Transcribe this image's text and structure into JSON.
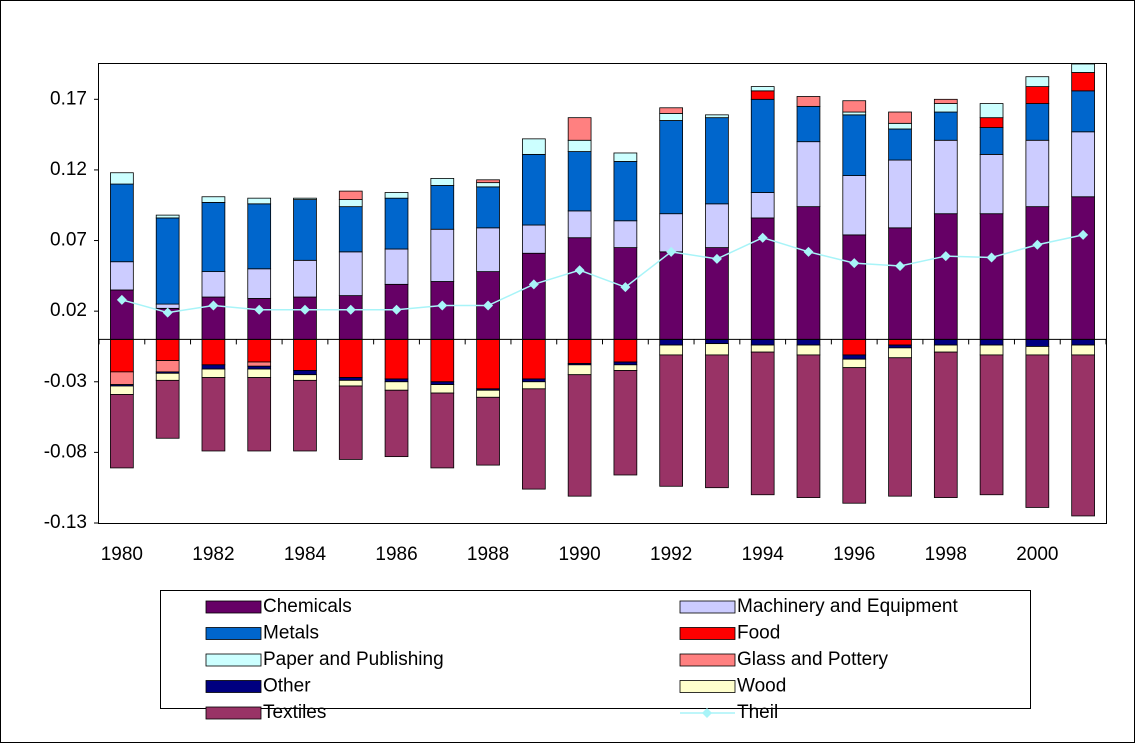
{
  "chart_data": {
    "type": "bar",
    "stacked": true,
    "categories": [
      "1980",
      null,
      "1982",
      null,
      "1984",
      null,
      "1986",
      null,
      "1988",
      null,
      "1990",
      null,
      "1992",
      null,
      "1994",
      null,
      "1996",
      null,
      "1998",
      null,
      "2000",
      null
    ],
    "ylim": [
      -0.13,
      0.195
    ],
    "yticks": [
      -0.13,
      -0.08,
      -0.03,
      0.02,
      0.07,
      0.12,
      0.17
    ],
    "series": [
      {
        "name": "Chemicals",
        "color": "#660066",
        "values": [
          0.035,
          0.022,
          0.03,
          0.029,
          0.03,
          0.031,
          0.039,
          0.041,
          0.048,
          0.061,
          0.072,
          0.065,
          0.062,
          0.065,
          0.086,
          0.094,
          0.074,
          0.079,
          0.089,
          0.089,
          0.094,
          0.101
        ]
      },
      {
        "name": "Machinery and Equipment",
        "color": "#ccccff",
        "values": [
          0.02,
          0.003,
          0.018,
          0.021,
          0.026,
          0.031,
          0.025,
          0.037,
          0.031,
          0.02,
          0.019,
          0.019,
          0.027,
          0.031,
          0.018,
          0.046,
          0.042,
          0.048,
          0.052,
          0.042,
          0.047,
          0.046
        ]
      },
      {
        "name": "Metals",
        "color": "#0066cc",
        "values": [
          0.055,
          0.061,
          0.049,
          0.046,
          0.043,
          0.032,
          0.036,
          0.031,
          0.029,
          0.05,
          0.042,
          0.042,
          0.066,
          0.061,
          0.066,
          0.025,
          0.043,
          0.022,
          0.02,
          0.019,
          0.026,
          0.029
        ]
      },
      {
        "name": "Food",
        "color": "#ff0000",
        "values": [
          -0.023,
          -0.015,
          -0.018,
          -0.016,
          -0.022,
          -0.027,
          -0.028,
          -0.03,
          -0.035,
          -0.028,
          -0.017,
          -0.016,
          0.0,
          0.0,
          0.006,
          0.0,
          -0.011,
          -0.004,
          0.0,
          0.007,
          0.012,
          0.013
        ]
      },
      {
        "name": "Paper and Publishing",
        "color": "#ccffff",
        "values": [
          0.008,
          0.002,
          0.004,
          0.004,
          0.001,
          0.005,
          0.004,
          0.005,
          0.003,
          0.011,
          0.008,
          0.006,
          0.005,
          0.002,
          0.003,
          0.0,
          0.002,
          0.004,
          0.006,
          0.01,
          0.007,
          0.006
        ]
      },
      {
        "name": "Glass and Pottery",
        "color": "#ff8080",
        "values": [
          -0.009,
          -0.008,
          0.0,
          -0.003,
          0.0,
          0.006,
          0.0,
          0.0,
          0.002,
          0.0,
          0.016,
          0.0,
          0.004,
          0.0,
          0.0,
          0.007,
          0.008,
          0.008,
          0.003,
          0.0,
          0.0,
          0.0
        ]
      },
      {
        "name": "Other",
        "color": "#000080",
        "values": [
          -0.001,
          -0.001,
          -0.003,
          -0.002,
          -0.003,
          -0.002,
          -0.002,
          -0.002,
          -0.001,
          -0.002,
          -0.001,
          -0.002,
          -0.004,
          -0.003,
          -0.004,
          -0.004,
          -0.003,
          -0.002,
          -0.004,
          -0.004,
          -0.005,
          -0.004
        ]
      },
      {
        "name": "Wood",
        "color": "#ffffcc",
        "values": [
          -0.006,
          -0.005,
          -0.006,
          -0.006,
          -0.004,
          -0.004,
          -0.006,
          -0.006,
          -0.005,
          -0.005,
          -0.007,
          -0.004,
          -0.007,
          -0.008,
          -0.005,
          -0.007,
          -0.006,
          -0.007,
          -0.005,
          -0.007,
          -0.006,
          -0.007
        ]
      },
      {
        "name": "Textiles",
        "color": "#993366",
        "values": [
          -0.052,
          -0.041,
          -0.052,
          -0.052,
          -0.05,
          -0.052,
          -0.047,
          -0.053,
          -0.048,
          -0.071,
          -0.086,
          -0.074,
          -0.093,
          -0.094,
          -0.101,
          -0.101,
          -0.096,
          -0.098,
          -0.103,
          -0.099,
          -0.108,
          -0.114
        ]
      },
      {
        "name": "Theil",
        "type": "line",
        "color": "#a8f4f8",
        "values": [
          0.028,
          0.019,
          0.024,
          0.021,
          0.021,
          0.021,
          0.021,
          0.024,
          0.024,
          0.039,
          0.049,
          0.037,
          0.062,
          0.057,
          0.072,
          0.062,
          0.054,
          0.052,
          0.059,
          0.058,
          0.067,
          0.074
        ]
      }
    ]
  }
}
